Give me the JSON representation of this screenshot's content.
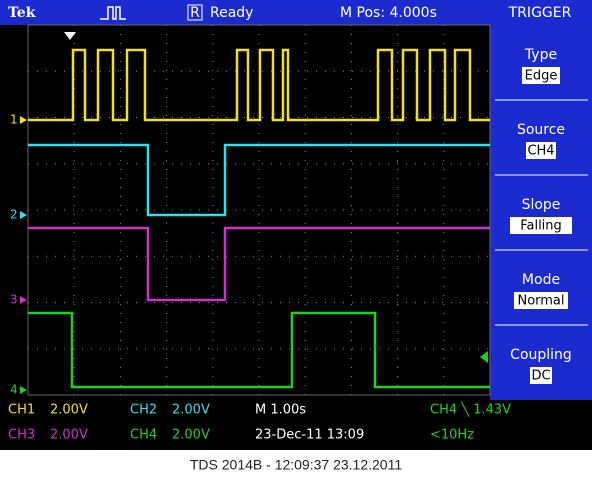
{
  "header": {
    "brand": "Tek",
    "status_badge": "R",
    "status": "Ready",
    "position": "M Pos: 4.000s",
    "menu_title": "TRIGGER"
  },
  "menu": [
    {
      "label": "Type",
      "value": "Edge"
    },
    {
      "label": "Source",
      "value": "CH4"
    },
    {
      "label": "Slope",
      "value": "Falling"
    },
    {
      "label": "Mode",
      "value": "Normal"
    },
    {
      "label": "Coupling",
      "value": "DC"
    }
  ],
  "channel_markers": [
    "1",
    "2",
    "3",
    "4"
  ],
  "readouts": {
    "row1": [
      "CH1",
      "2.00V",
      "CH2",
      "2.00V",
      "M 1.00s",
      "CH4 ╲ 1.43V"
    ],
    "row2": [
      "CH3",
      "2.00V",
      "CH4",
      "2.00V",
      "23-Dec-11 13:09",
      "<10Hz"
    ]
  },
  "caption": "TDS 2014B - 12:09:37   23.12.2011"
}
